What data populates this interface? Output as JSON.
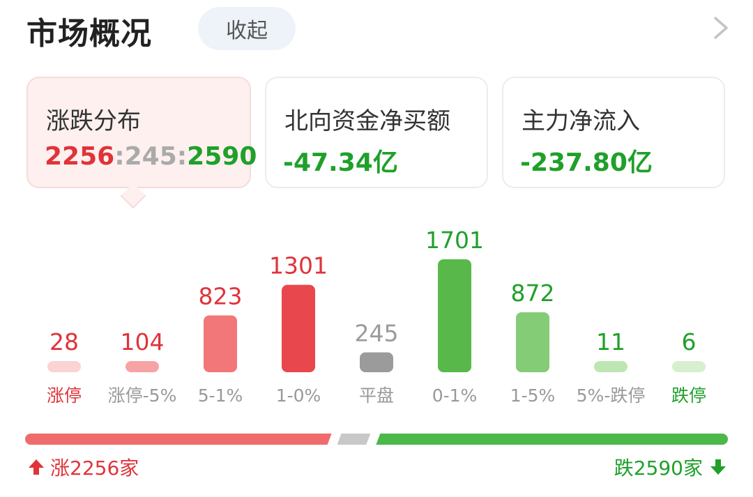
{
  "header": {
    "title": "市场概况",
    "collapse_label": "收起"
  },
  "cards": [
    {
      "title": "涨跌分布",
      "up": "2256",
      "flat": "245",
      "down": "2590",
      "sep": ":"
    },
    {
      "title": "北向资金净买额",
      "value": "-47.34亿"
    },
    {
      "title": "主力净流入",
      "value": "-237.80亿"
    }
  ],
  "chart_data": {
    "type": "bar",
    "categories": [
      "涨停",
      "涨停-5%",
      "5-1%",
      "1-0%",
      "平盘",
      "0-1%",
      "1-5%",
      "5%-跌停",
      "跌停"
    ],
    "values": [
      28,
      104,
      823,
      1301,
      245,
      1701,
      872,
      11,
      6
    ],
    "value_labels": [
      "28",
      "104",
      "823",
      "1301",
      "245",
      "1701",
      "872",
      "11",
      "6"
    ],
    "bar_colors": [
      "#fbd3d3",
      "#f7a3a5",
      "#f17779",
      "#e8474d",
      "#9b9b9b",
      "#58b94a",
      "#85cc76",
      "#bde6b3",
      "#d6f0cf"
    ],
    "value_label_colors": [
      "#e0333a",
      "#e0333a",
      "#e0333a",
      "#e0333a",
      "#9b9b9b",
      "#1fa02a",
      "#1fa02a",
      "#1fa02a",
      "#1fa02a"
    ],
    "category_label_colors": [
      "#e0333a",
      "#999999",
      "#999999",
      "#999999",
      "#999999",
      "#999999",
      "#999999",
      "#999999",
      "#1fa02a"
    ]
  },
  "summary": {
    "up_count": 2256,
    "flat_count": 245,
    "down_count": 2590,
    "up_label": "涨2256家",
    "down_label": "跌2590家",
    "up_color": "#f06b6b",
    "flat_color": "#c8c8c8",
    "down_color": "#4cb849"
  },
  "icons": {
    "chevron": "chevron-right-icon",
    "up": "arrow-up-icon",
    "down": "arrow-down-icon"
  }
}
